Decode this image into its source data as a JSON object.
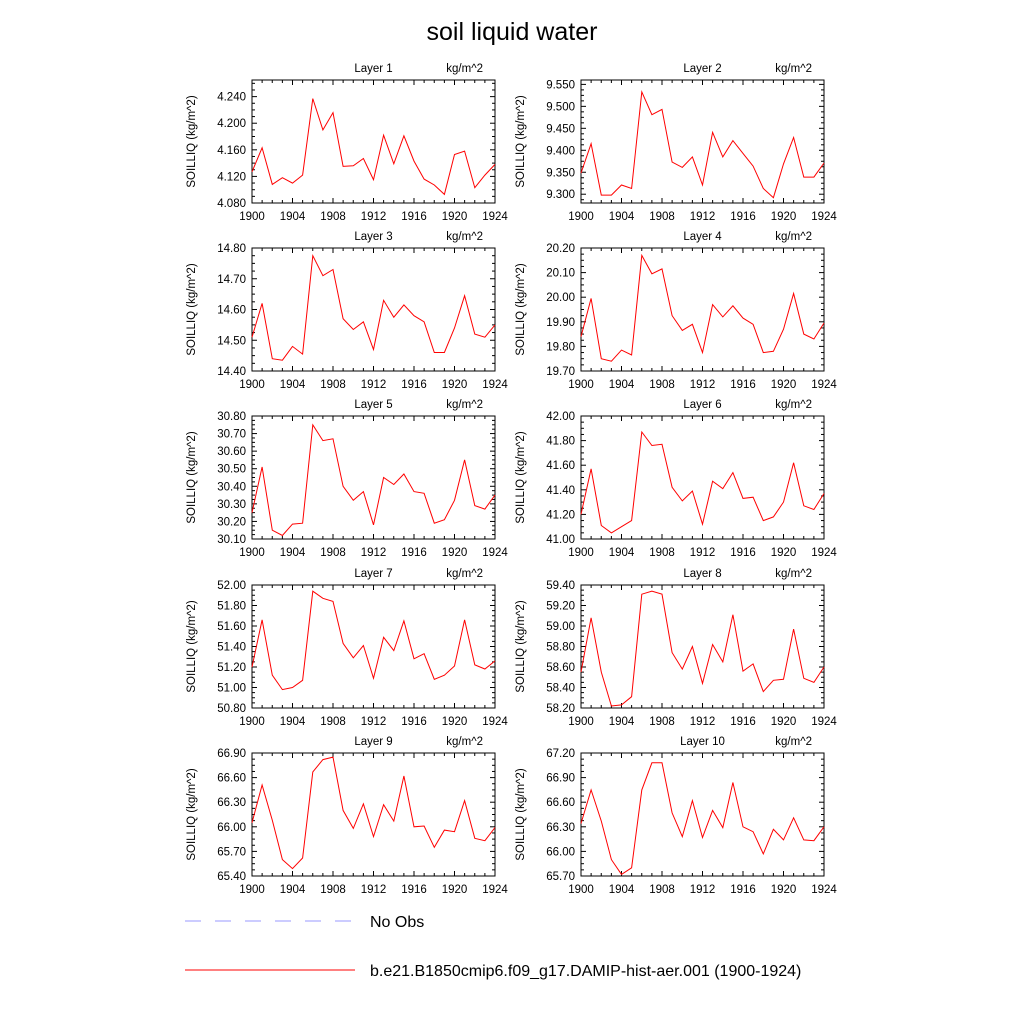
{
  "title": "soil liquid water",
  "chart_data": [
    {
      "type": "line",
      "title": "Layer 1",
      "units": "kg/m^2",
      "ylabel": "SOILLIQ  (kg/m^2)",
      "ylim": [
        4.08,
        4.265
      ],
      "yticks": [
        "4.080",
        "4.120",
        "4.160",
        "4.200",
        "4.240"
      ],
      "x": [
        1900,
        1901,
        1902,
        1903,
        1904,
        1905,
        1906,
        1907,
        1908,
        1909,
        1910,
        1911,
        1912,
        1913,
        1914,
        1915,
        1916,
        1917,
        1918,
        1919,
        1920,
        1921,
        1922,
        1923,
        1924
      ],
      "xticks": [
        "1900",
        "1904",
        "1908",
        "1912",
        "1916",
        "1920",
        "1924"
      ],
      "series": [
        {
          "values": [
            4.127,
            4.163,
            4.108,
            4.118,
            4.11,
            4.122,
            4.237,
            4.19,
            4.216,
            4.135,
            4.136,
            4.147,
            4.115,
            4.182,
            4.139,
            4.181,
            4.143,
            4.116,
            4.107,
            4.093,
            4.153,
            4.158,
            4.103,
            4.122,
            4.138
          ]
        }
      ]
    },
    {
      "type": "line",
      "title": "Layer 2",
      "units": "kg/m^2",
      "ylabel": "SOILLIQ  (kg/m^2)",
      "ylim": [
        9.28,
        9.56
      ],
      "yticks": [
        "9.300",
        "9.350",
        "9.400",
        "9.450",
        "9.500",
        "9.550"
      ],
      "x": [
        1900,
        1901,
        1902,
        1903,
        1904,
        1905,
        1906,
        1907,
        1908,
        1909,
        1910,
        1911,
        1912,
        1913,
        1914,
        1915,
        1916,
        1917,
        1918,
        1919,
        1920,
        1921,
        1922,
        1923,
        1924
      ],
      "xticks": [
        "1900",
        "1904",
        "1908",
        "1912",
        "1916",
        "1920",
        "1924"
      ],
      "series": [
        {
          "values": [
            9.348,
            9.415,
            9.298,
            9.298,
            9.321,
            9.313,
            9.533,
            9.481,
            9.493,
            9.373,
            9.361,
            9.385,
            9.321,
            9.441,
            9.385,
            9.422,
            9.393,
            9.364,
            9.313,
            9.292,
            9.369,
            9.429,
            9.339,
            9.339,
            9.371
          ]
        }
      ]
    },
    {
      "type": "line",
      "title": "Layer 3",
      "units": "kg/m^2",
      "ylabel": "SOILLIQ  (kg/m^2)",
      "ylim": [
        14.4,
        14.8
      ],
      "yticks": [
        "14.40",
        "14.50",
        "14.60",
        "14.70",
        "14.80"
      ],
      "x": [
        1900,
        1901,
        1902,
        1903,
        1904,
        1905,
        1906,
        1907,
        1908,
        1909,
        1910,
        1911,
        1912,
        1913,
        1914,
        1915,
        1916,
        1917,
        1918,
        1919,
        1920,
        1921,
        1922,
        1923,
        1924
      ],
      "xticks": [
        "1900",
        "1904",
        "1908",
        "1912",
        "1916",
        "1920",
        "1924"
      ],
      "series": [
        {
          "values": [
            14.51,
            14.62,
            14.44,
            14.435,
            14.48,
            14.455,
            14.775,
            14.71,
            14.73,
            14.57,
            14.535,
            14.56,
            14.47,
            14.63,
            14.575,
            14.615,
            14.58,
            14.56,
            14.46,
            14.46,
            14.54,
            14.645,
            14.52,
            14.51,
            14.55
          ]
        }
      ]
    },
    {
      "type": "line",
      "title": "Layer 4",
      "units": "kg/m^2",
      "ylabel": "SOILLIQ  (kg/m^2)",
      "ylim": [
        19.7,
        20.2
      ],
      "yticks": [
        "19.70",
        "19.80",
        "19.90",
        "20.00",
        "20.10",
        "20.20"
      ],
      "x": [
        1900,
        1901,
        1902,
        1903,
        1904,
        1905,
        1906,
        1907,
        1908,
        1909,
        1910,
        1911,
        1912,
        1913,
        1914,
        1915,
        1916,
        1917,
        1918,
        1919,
        1920,
        1921,
        1922,
        1923,
        1924
      ],
      "xticks": [
        "1900",
        "1904",
        "1908",
        "1912",
        "1916",
        "1920",
        "1924"
      ],
      "series": [
        {
          "values": [
            19.84,
            19.995,
            19.75,
            19.74,
            19.785,
            19.765,
            20.17,
            20.095,
            20.115,
            19.925,
            19.865,
            19.89,
            19.775,
            19.97,
            19.92,
            19.965,
            19.915,
            19.89,
            19.775,
            19.78,
            19.87,
            20.015,
            19.85,
            19.83,
            19.895
          ]
        }
      ]
    },
    {
      "type": "line",
      "title": "Layer 5",
      "units": "kg/m^2",
      "ylabel": "SOILLIQ  (kg/m^2)",
      "ylim": [
        30.1,
        30.8
      ],
      "yticks": [
        "30.10",
        "30.20",
        "30.30",
        "30.40",
        "30.50",
        "30.60",
        "30.70",
        "30.80"
      ],
      "x": [
        1900,
        1901,
        1902,
        1903,
        1904,
        1905,
        1906,
        1907,
        1908,
        1909,
        1910,
        1911,
        1912,
        1913,
        1914,
        1915,
        1916,
        1917,
        1918,
        1919,
        1920,
        1921,
        1922,
        1923,
        1924
      ],
      "xticks": [
        "1900",
        "1904",
        "1908",
        "1912",
        "1916",
        "1920",
        "1924"
      ],
      "series": [
        {
          "values": [
            30.25,
            30.51,
            30.15,
            30.12,
            30.185,
            30.19,
            30.75,
            30.66,
            30.67,
            30.4,
            30.32,
            30.37,
            30.18,
            30.45,
            30.41,
            30.47,
            30.37,
            30.36,
            30.19,
            30.21,
            30.32,
            30.55,
            30.29,
            30.27,
            30.35
          ]
        }
      ]
    },
    {
      "type": "line",
      "title": "Layer 6",
      "units": "kg/m^2",
      "ylabel": "SOILLIQ  (kg/m^2)",
      "ylim": [
        41.0,
        42.0
      ],
      "yticks": [
        "41.00",
        "41.20",
        "41.40",
        "41.60",
        "41.80",
        "42.00"
      ],
      "x": [
        1900,
        1901,
        1902,
        1903,
        1904,
        1905,
        1906,
        1907,
        1908,
        1909,
        1910,
        1911,
        1912,
        1913,
        1914,
        1915,
        1916,
        1917,
        1918,
        1919,
        1920,
        1921,
        1922,
        1923,
        1924
      ],
      "xticks": [
        "1900",
        "1904",
        "1908",
        "1912",
        "1916",
        "1920",
        "1924"
      ],
      "series": [
        {
          "values": [
            41.2,
            41.57,
            41.11,
            41.05,
            41.1,
            41.15,
            41.87,
            41.76,
            41.77,
            41.42,
            41.31,
            41.39,
            41.12,
            41.47,
            41.41,
            41.54,
            41.33,
            41.34,
            41.15,
            41.18,
            41.3,
            41.62,
            41.27,
            41.24,
            41.37
          ]
        }
      ]
    },
    {
      "type": "line",
      "title": "Layer 7",
      "units": "kg/m^2",
      "ylabel": "SOILLIQ  (kg/m^2)",
      "ylim": [
        50.8,
        52.0
      ],
      "yticks": [
        "50.80",
        "51.00",
        "51.20",
        "51.40",
        "51.60",
        "51.80",
        "52.00"
      ],
      "x": [
        1900,
        1901,
        1902,
        1903,
        1904,
        1905,
        1906,
        1907,
        1908,
        1909,
        1910,
        1911,
        1912,
        1913,
        1914,
        1915,
        1916,
        1917,
        1918,
        1919,
        1920,
        1921,
        1922,
        1923,
        1924
      ],
      "xticks": [
        "1900",
        "1904",
        "1908",
        "1912",
        "1916",
        "1920",
        "1924"
      ],
      "series": [
        {
          "values": [
            51.2,
            51.66,
            51.12,
            50.98,
            51.0,
            51.07,
            51.94,
            51.87,
            51.84,
            51.43,
            51.29,
            51.41,
            51.09,
            51.49,
            51.36,
            51.65,
            51.28,
            51.33,
            51.08,
            51.12,
            51.21,
            51.66,
            51.22,
            51.18,
            51.26
          ]
        }
      ]
    },
    {
      "type": "line",
      "title": "Layer 8",
      "units": "kg/m^2",
      "ylabel": "SOILLIQ  (kg/m^2)",
      "ylim": [
        58.2,
        59.4
      ],
      "yticks": [
        "58.20",
        "58.40",
        "58.60",
        "58.80",
        "59.00",
        "59.20",
        "59.40"
      ],
      "x": [
        1900,
        1901,
        1902,
        1903,
        1904,
        1905,
        1906,
        1907,
        1908,
        1909,
        1910,
        1911,
        1912,
        1913,
        1914,
        1915,
        1916,
        1917,
        1918,
        1919,
        1920,
        1921,
        1922,
        1923,
        1924
      ],
      "xticks": [
        "1900",
        "1904",
        "1908",
        "1912",
        "1916",
        "1920",
        "1924"
      ],
      "series": [
        {
          "values": [
            58.55,
            59.08,
            58.55,
            58.22,
            58.23,
            58.31,
            59.31,
            59.34,
            59.31,
            58.74,
            58.58,
            58.8,
            58.44,
            58.82,
            58.65,
            59.11,
            58.56,
            58.63,
            58.36,
            58.47,
            58.48,
            58.97,
            58.49,
            58.45,
            58.6
          ]
        }
      ]
    },
    {
      "type": "line",
      "title": "Layer 9",
      "units": "kg/m^2",
      "ylabel": "SOILLIQ  (kg/m^2)",
      "ylim": [
        65.4,
        66.9
      ],
      "yticks": [
        "65.40",
        "65.70",
        "66.00",
        "66.30",
        "66.60",
        "66.90"
      ],
      "x": [
        1900,
        1901,
        1902,
        1903,
        1904,
        1905,
        1906,
        1907,
        1908,
        1909,
        1910,
        1911,
        1912,
        1913,
        1914,
        1915,
        1916,
        1917,
        1918,
        1919,
        1920,
        1921,
        1922,
        1923,
        1924
      ],
      "xticks": [
        "1900",
        "1904",
        "1908",
        "1912",
        "1916",
        "1920",
        "1924"
      ],
      "series": [
        {
          "values": [
            66.05,
            66.51,
            66.08,
            65.6,
            65.49,
            65.62,
            66.67,
            66.82,
            66.85,
            66.2,
            65.98,
            66.28,
            65.88,
            66.27,
            66.07,
            66.62,
            66.0,
            66.01,
            65.75,
            65.96,
            65.94,
            66.32,
            65.86,
            65.83,
            65.99
          ]
        }
      ]
    },
    {
      "type": "line",
      "title": "Layer 10",
      "units": "kg/m^2",
      "ylabel": "SOILLIQ  (kg/m^2)",
      "ylim": [
        65.7,
        67.2
      ],
      "yticks": [
        "65.70",
        "66.00",
        "66.30",
        "66.60",
        "66.90",
        "67.20"
      ],
      "x": [
        1900,
        1901,
        1902,
        1903,
        1904,
        1905,
        1906,
        1907,
        1908,
        1909,
        1910,
        1911,
        1912,
        1913,
        1914,
        1915,
        1916,
        1917,
        1918,
        1919,
        1920,
        1921,
        1922,
        1923,
        1924
      ],
      "xticks": [
        "1900",
        "1904",
        "1908",
        "1912",
        "1916",
        "1920",
        "1924"
      ],
      "series": [
        {
          "values": [
            66.34,
            66.75,
            66.37,
            65.9,
            65.72,
            65.8,
            66.75,
            67.08,
            67.08,
            66.47,
            66.18,
            66.62,
            66.17,
            66.5,
            66.29,
            66.84,
            66.3,
            66.24,
            65.97,
            66.27,
            66.14,
            66.41,
            66.14,
            66.13,
            66.3
          ]
        }
      ]
    }
  ],
  "legend": [
    {
      "label": "No Obs",
      "color": "#9999ff",
      "style": "dashed"
    },
    {
      "label": "b.e21.B1850cmip6.f09_g17.DAMIP-hist-aer.001 (1900-1924)",
      "color": "#ff0000",
      "style": "solid"
    }
  ]
}
